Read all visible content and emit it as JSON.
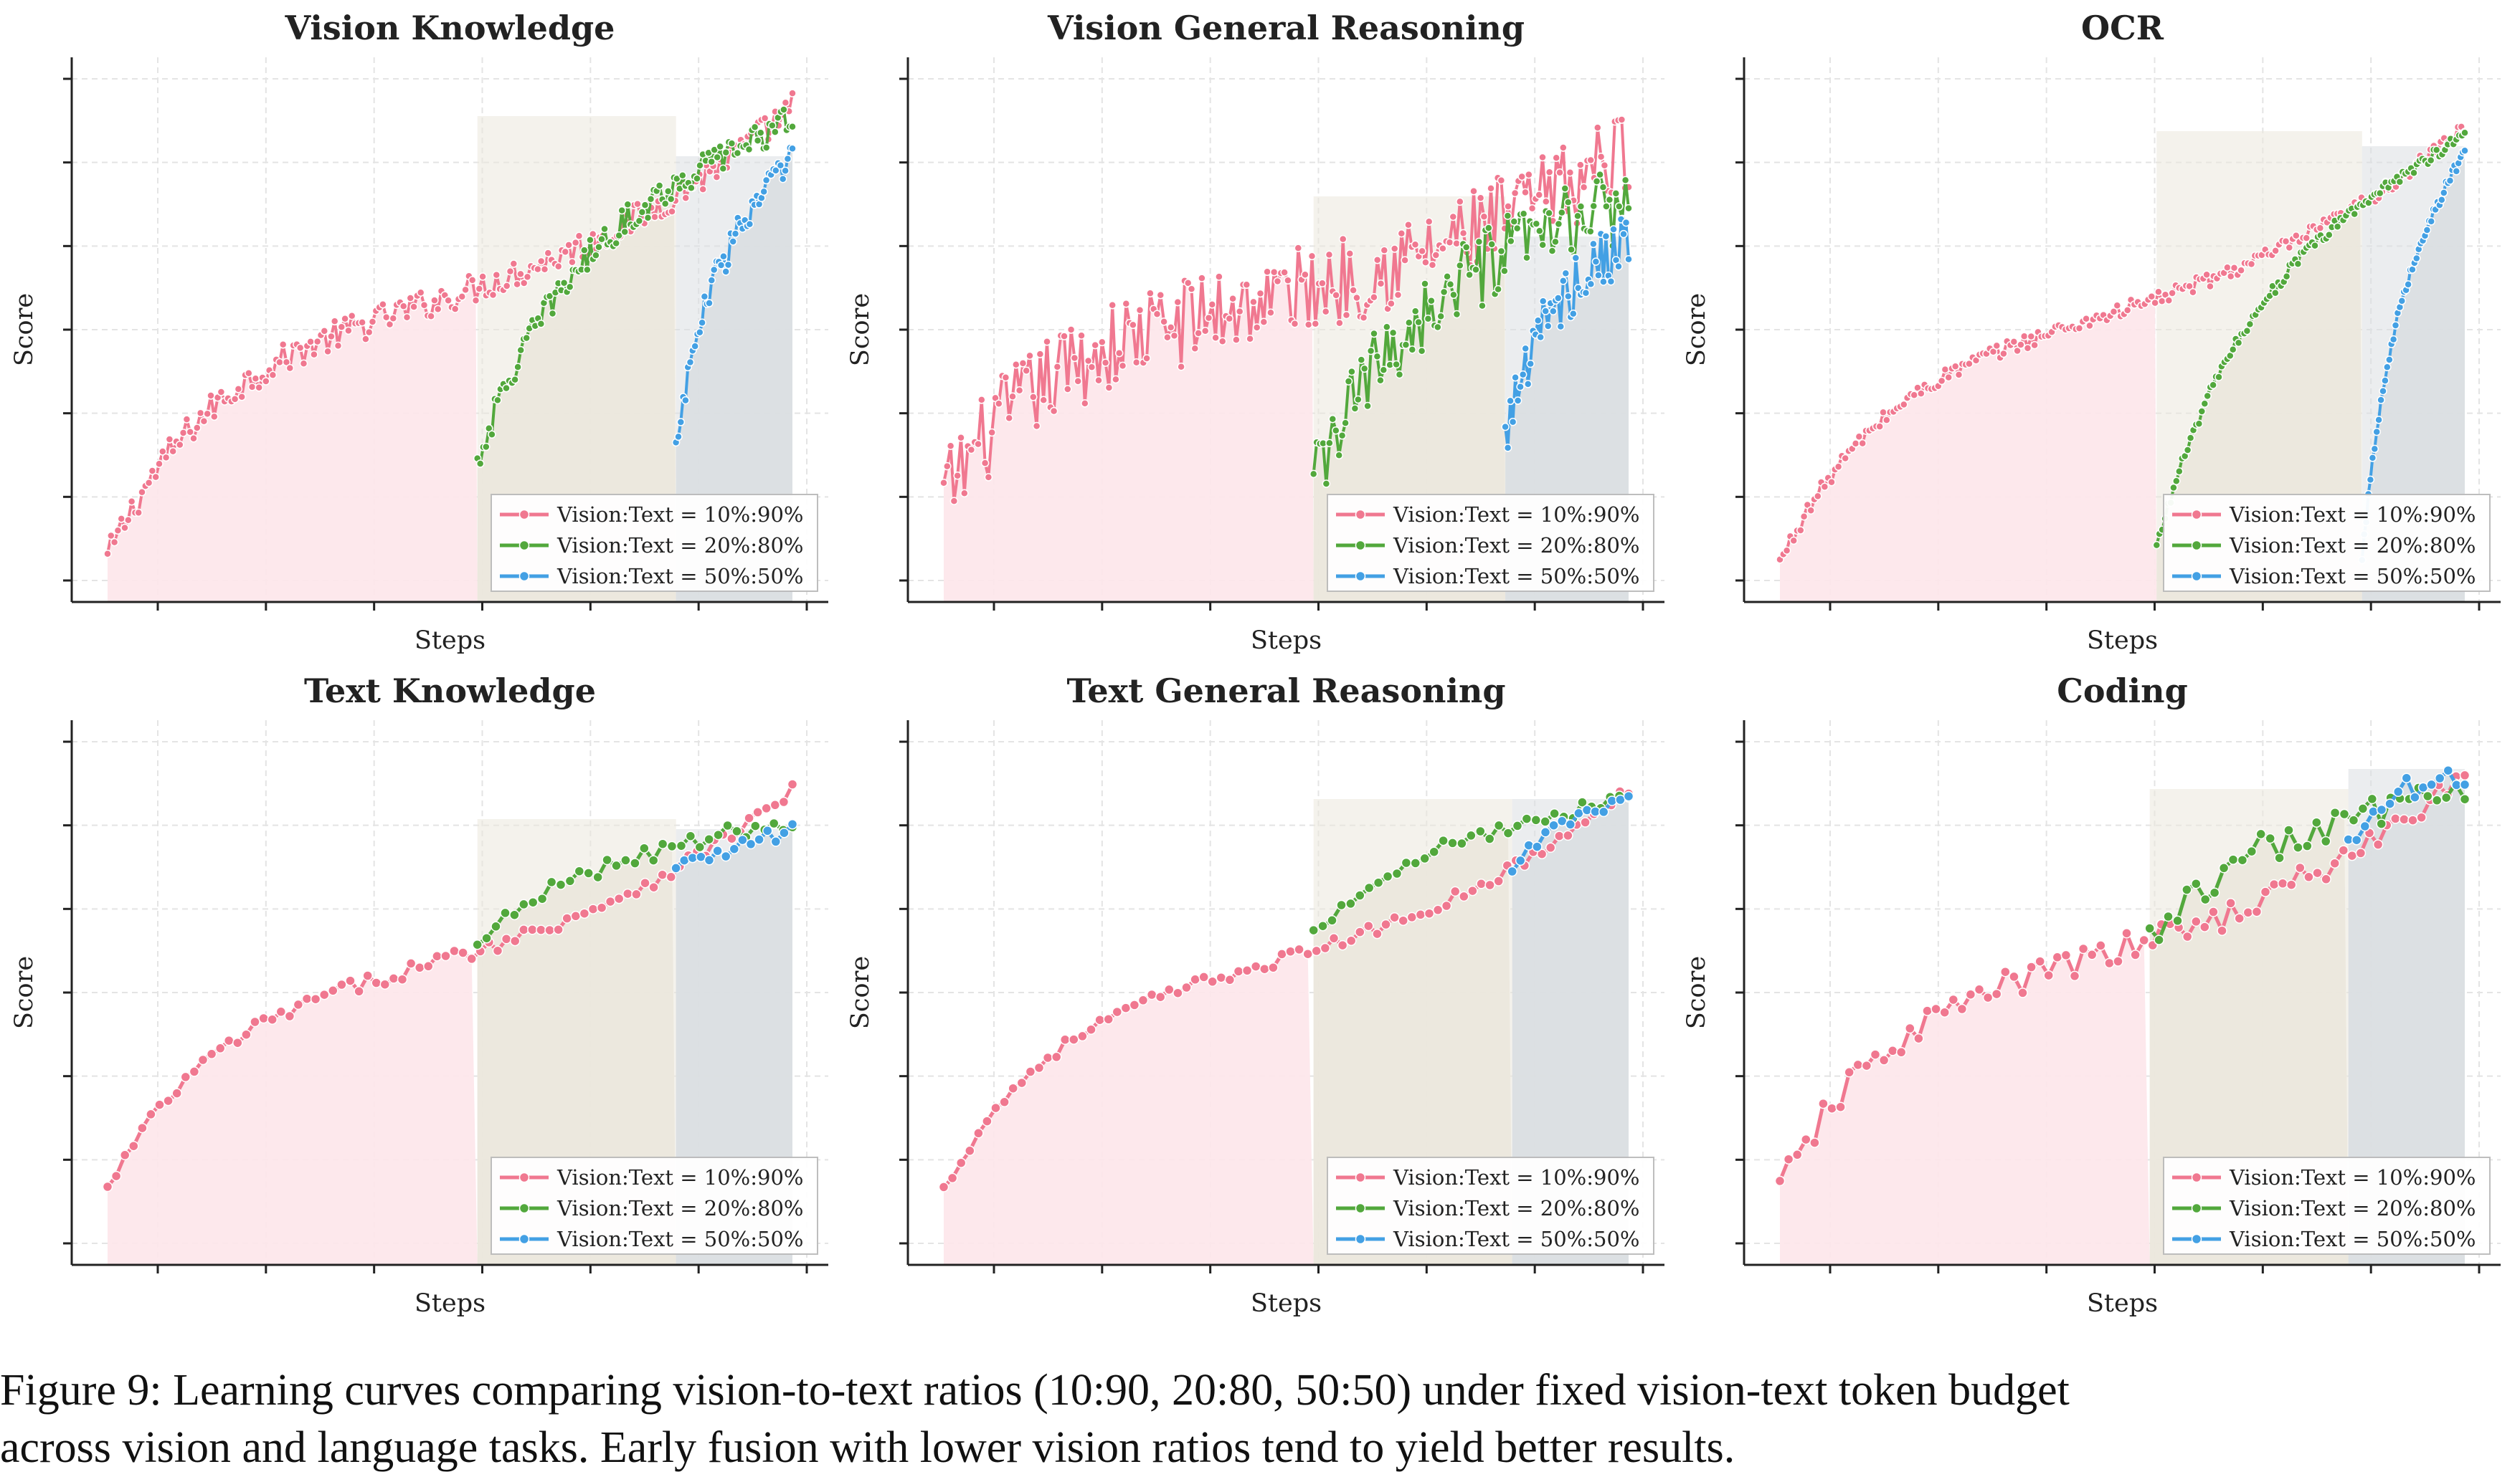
{
  "figure": {
    "caption_line1": "Figure 9: Learning curves comparing vision-to-text ratios (10:90, 20:80, 50:50) under fixed vision-text token budget",
    "caption_line2": "across vision and language tasks. Early fusion with lower vision ratios tend to yield better results."
  },
  "colors": {
    "series_10_90": "#f07890",
    "series_20_80": "#52a83c",
    "series_50_50": "#43a0e4",
    "fill_10_90": "#fde6ea",
    "fill_20_80": "#ebe7dc",
    "fill_50_50": "#dadfe2"
  },
  "chart_data": [
    {
      "type": "line",
      "title": "Vision Knowledge",
      "xlabel": "Steps",
      "ylabel": "Score",
      "xlim": [
        0,
        1
      ],
      "ylim": [
        0,
        1
      ],
      "noisy": true,
      "legend_location": "lower-right",
      "series": [
        {
          "name": "Vision:Text = 10%:90%",
          "start": 0.0,
          "y_start": 0.06,
          "y_end": 0.96,
          "noise": 0.03,
          "points": 200
        },
        {
          "name": "Vision:Text = 20%:80%",
          "start": 0.54,
          "y_start": 0.25,
          "y_end": 0.94,
          "noise": 0.03,
          "points": 110
        },
        {
          "name": "Vision:Text = 50%:50%",
          "start": 0.83,
          "y_start": 0.28,
          "y_end": 0.86,
          "noise": 0.035,
          "points": 50
        }
      ]
    },
    {
      "type": "line",
      "title": "Vision General Reasoning",
      "xlabel": "Steps",
      "ylabel": "Score",
      "xlim": [
        0,
        1
      ],
      "ylim": [
        0,
        1
      ],
      "noisy": true,
      "legend_location": "lower-right",
      "series": [
        {
          "name": "Vision:Text = 10%:90%",
          "start": 0.0,
          "y_start": 0.18,
          "y_end": 0.88,
          "noise": 0.09,
          "points": 200
        },
        {
          "name": "Vision:Text = 20%:80%",
          "start": 0.54,
          "y_start": 0.2,
          "y_end": 0.78,
          "noise": 0.08,
          "points": 100
        },
        {
          "name": "Vision:Text = 50%:50%",
          "start": 0.82,
          "y_start": 0.3,
          "y_end": 0.7,
          "noise": 0.06,
          "points": 50
        }
      ]
    },
    {
      "type": "line",
      "title": "OCR",
      "xlabel": "Steps",
      "ylabel": "Score",
      "xlim": [
        0,
        1
      ],
      "ylim": [
        0,
        1
      ],
      "noisy": true,
      "legend_location": "lower-right",
      "series": [
        {
          "name": "Vision:Text = 10%:90%",
          "start": 0.0,
          "y_start": 0.05,
          "y_end": 0.92,
          "noise": 0.015,
          "points": 200
        },
        {
          "name": "Vision:Text = 20%:80%",
          "start": 0.55,
          "y_start": 0.08,
          "y_end": 0.91,
          "noise": 0.012,
          "points": 110
        },
        {
          "name": "Vision:Text = 50%:50%",
          "start": 0.85,
          "y_start": 0.05,
          "y_end": 0.88,
          "noise": 0.012,
          "points": 50
        }
      ]
    },
    {
      "type": "line",
      "title": "Text Knowledge",
      "xlabel": "Steps",
      "ylabel": "Score",
      "xlim": [
        0,
        1
      ],
      "ylim": [
        0,
        1
      ],
      "noisy": false,
      "legend_location": "lower-right",
      "series": [
        {
          "name": "Vision:Text = 10%:90%",
          "start": 0.0,
          "y_start": 0.12,
          "y_end": 0.92,
          "noise": 0.015,
          "points": 80
        },
        {
          "name": "Vision:Text = 20%:80%",
          "start": 0.54,
          "y_start": 0.6,
          "y_end": 0.86,
          "noise": 0.02,
          "points": 35
        },
        {
          "name": "Vision:Text = 50%:50%",
          "start": 0.83,
          "y_start": 0.75,
          "y_end": 0.84,
          "noise": 0.025,
          "points": 15
        }
      ]
    },
    {
      "type": "line",
      "title": "Text General Reasoning",
      "xlabel": "Steps",
      "ylabel": "Score",
      "xlim": [
        0,
        1
      ],
      "ylim": [
        0,
        1
      ],
      "noisy": false,
      "legend_location": "lower-right",
      "series": [
        {
          "name": "Vision:Text = 10%:90%",
          "start": 0.0,
          "y_start": 0.12,
          "y_end": 0.92,
          "noise": 0.012,
          "points": 80
        },
        {
          "name": "Vision:Text = 20%:80%",
          "start": 0.54,
          "y_start": 0.63,
          "y_end": 0.9,
          "noise": 0.015,
          "points": 35
        },
        {
          "name": "Vision:Text = 50%:50%",
          "start": 0.83,
          "y_start": 0.75,
          "y_end": 0.9,
          "noise": 0.01,
          "points": 15
        }
      ]
    },
    {
      "type": "line",
      "title": "Coding",
      "xlabel": "Steps",
      "ylabel": "Score",
      "xlim": [
        0,
        1
      ],
      "ylim": [
        0,
        1
      ],
      "noisy": false,
      "legend_location": "lower-right",
      "series": [
        {
          "name": "Vision:Text = 10%:90%",
          "start": 0.0,
          "y_start": 0.12,
          "y_end": 0.95,
          "noise": 0.03,
          "points": 80
        },
        {
          "name": "Vision:Text = 20%:80%",
          "start": 0.54,
          "y_start": 0.62,
          "y_end": 0.92,
          "noise": 0.035,
          "points": 35
        },
        {
          "name": "Vision:Text = 50%:50%",
          "start": 0.83,
          "y_start": 0.8,
          "y_end": 0.96,
          "noise": 0.03,
          "points": 15
        }
      ]
    }
  ]
}
